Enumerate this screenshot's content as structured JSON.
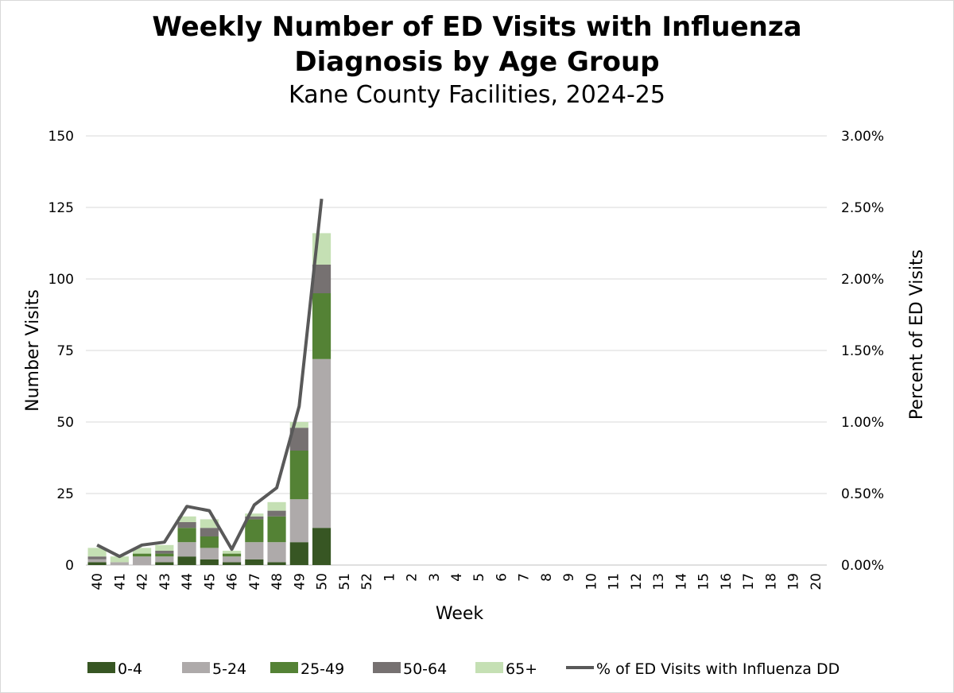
{
  "chart_data": {
    "type": "bar",
    "stacked": true,
    "title": "Weekly Number of ED Visits with Influenza",
    "title_line2": "Diagnosis by Age Group",
    "subtitle": "Kane County Facilities, 2024-25",
    "xlabel": "Week",
    "ylabel": "Number Visits",
    "y2label": "Percent of ED Visits",
    "ylim": [
      0,
      150
    ],
    "y2lim": [
      0,
      3.0
    ],
    "yticks": [
      "0",
      "25",
      "50",
      "75",
      "100",
      "125",
      "150"
    ],
    "y2ticks": [
      "0.00%",
      "0.50%",
      "1.00%",
      "1.50%",
      "2.00%",
      "2.50%",
      "3.00%"
    ],
    "categories": [
      "40",
      "41",
      "42",
      "43",
      "44",
      "45",
      "46",
      "47",
      "48",
      "49",
      "50",
      "51",
      "52",
      "1",
      "2",
      "3",
      "4",
      "5",
      "6",
      "7",
      "8",
      "9",
      "10",
      "11",
      "12",
      "13",
      "14",
      "15",
      "16",
      "17",
      "18",
      "19",
      "20"
    ],
    "grid": true,
    "legend_position": "bottom",
    "series": [
      {
        "name": "0-4",
        "color": "#375623",
        "values": [
          1,
          0,
          0,
          1,
          3,
          2,
          1,
          2,
          1,
          8,
          13,
          null,
          null,
          null,
          null,
          null,
          null,
          null,
          null,
          null,
          null,
          null,
          null,
          null,
          null,
          null,
          null,
          null,
          null,
          null,
          null,
          null,
          null
        ]
      },
      {
        "name": "5-24",
        "color": "#aeaaaa",
        "values": [
          1,
          1,
          3,
          2,
          5,
          4,
          2,
          6,
          7,
          15,
          59,
          null,
          null,
          null,
          null,
          null,
          null,
          null,
          null,
          null,
          null,
          null,
          null,
          null,
          null,
          null,
          null,
          null,
          null,
          null,
          null,
          null,
          null
        ]
      },
      {
        "name": "25-49",
        "color": "#548235",
        "values": [
          0,
          0,
          1,
          1,
          5,
          4,
          1,
          8,
          9,
          17,
          23,
          null,
          null,
          null,
          null,
          null,
          null,
          null,
          null,
          null,
          null,
          null,
          null,
          null,
          null,
          null,
          null,
          null,
          null,
          null,
          null,
          null,
          null
        ]
      },
      {
        "name": "50-64",
        "color": "#767171",
        "values": [
          1,
          0,
          0,
          1,
          2,
          3,
          0,
          1,
          2,
          8,
          10,
          null,
          null,
          null,
          null,
          null,
          null,
          null,
          null,
          null,
          null,
          null,
          null,
          null,
          null,
          null,
          null,
          null,
          null,
          null,
          null,
          null,
          null
        ]
      },
      {
        "name": "65+",
        "color": "#c5e0b4",
        "values": [
          3,
          2,
          2,
          2,
          2,
          3,
          1,
          1,
          3,
          2,
          11,
          null,
          null,
          null,
          null,
          null,
          null,
          null,
          null,
          null,
          null,
          null,
          null,
          null,
          null,
          null,
          null,
          null,
          null,
          null,
          null,
          null,
          null
        ]
      }
    ],
    "line_series": {
      "name": "% of ED Visits with Influenza DD",
      "color": "#595959",
      "axis": "secondary",
      "values": [
        0.14,
        0.06,
        0.14,
        0.16,
        0.41,
        0.38,
        0.11,
        0.42,
        0.54,
        1.11,
        2.56,
        null,
        null,
        null,
        null,
        null,
        null,
        null,
        null,
        null,
        null,
        null,
        null,
        null,
        null,
        null,
        null,
        null,
        null,
        null,
        null,
        null,
        null
      ]
    }
  }
}
